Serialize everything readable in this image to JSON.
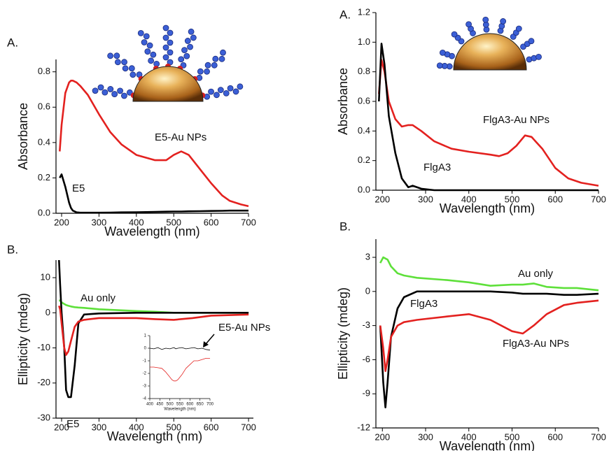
{
  "chart_data": [
    {
      "type": "line",
      "panel": "A.",
      "ylabel": "Absorbance",
      "xlabel": "Wavelength (nm)",
      "xlim": [
        185,
        700
      ],
      "ylim": [
        0,
        0.87
      ],
      "xticks": [
        200,
        300,
        400,
        500,
        600,
        700
      ],
      "yticks": [
        {
          "value": 0,
          "label": "0.0"
        },
        0.2,
        0.4,
        0.6,
        0.8
      ],
      "x": [
        195,
        200,
        210,
        220,
        225,
        230,
        240,
        250,
        270,
        300,
        330,
        360,
        400,
        450,
        480,
        500,
        520,
        540,
        570,
        600,
        630,
        650,
        680,
        700
      ],
      "series": [
        {
          "name": "E5-Au NPs",
          "color": "#e3211f",
          "values": [
            0.35,
            0.5,
            0.68,
            0.74,
            0.75,
            0.75,
            0.74,
            0.72,
            0.67,
            0.56,
            0.46,
            0.39,
            0.33,
            0.3,
            0.3,
            0.33,
            0.35,
            0.33,
            0.25,
            0.17,
            0.1,
            0.07,
            0.05,
            0.04
          ]
        },
        {
          "name": "E5",
          "color": "#000000",
          "values": [
            0.2,
            0.22,
            0.15,
            0.06,
            0.03,
            0.015,
            0.005,
            0.003,
            0.003,
            0.003,
            0.004,
            0.005,
            0.006,
            0.008,
            0.009,
            0.01,
            0.01,
            0.011,
            0.012,
            0.013,
            0.014,
            0.015,
            0.015,
            0.015
          ]
        }
      ]
    },
    {
      "type": "line",
      "panel": "A.",
      "ylabel": "Absorbance",
      "xlabel": "Wavelength (nm)",
      "xlim": [
        185,
        700
      ],
      "ylim": [
        0,
        1.2
      ],
      "xticks": [
        200,
        300,
        400,
        500,
        600,
        700
      ],
      "yticks": [
        {
          "value": 0,
          "label": "0.0"
        },
        0.2,
        0.4,
        0.6,
        0.8,
        {
          "value": 1,
          "label": "1.0"
        },
        1.2
      ],
      "x": [
        192,
        198,
        205,
        215,
        230,
        245,
        260,
        270,
        290,
        320,
        360,
        400,
        450,
        470,
        490,
        510,
        530,
        545,
        570,
        600,
        630,
        660,
        700
      ],
      "series": [
        {
          "name": "FlgA3-Au NPs",
          "color": "#e3211f",
          "values": [
            0.65,
            0.88,
            0.8,
            0.6,
            0.48,
            0.43,
            0.44,
            0.44,
            0.4,
            0.33,
            0.28,
            0.26,
            0.24,
            0.23,
            0.25,
            0.3,
            0.37,
            0.36,
            0.28,
            0.15,
            0.08,
            0.05,
            0.03
          ]
        },
        {
          "name": "FlgA3",
          "color": "#000000",
          "values": [
            0.6,
            0.99,
            0.85,
            0.5,
            0.25,
            0.08,
            0.02,
            0.03,
            0.01,
            0,
            0,
            0,
            0,
            0,
            0,
            0,
            0,
            0,
            0,
            0,
            0,
            0,
            0
          ]
        }
      ]
    },
    {
      "type": "line",
      "panel": "B.",
      "ylabel": "Ellipticity (mdeg)",
      "xlabel": "Wavelength (nm)",
      "xlim": [
        185,
        713
      ],
      "ylim": [
        -30,
        15
      ],
      "xticks": [
        200,
        300,
        400,
        500,
        600,
        700
      ],
      "yticks": [
        -30,
        -20,
        -10,
        0,
        10
      ],
      "x": [
        193,
        196,
        200,
        207,
        212,
        218,
        225,
        235,
        245,
        260,
        300,
        400,
        450,
        500,
        550,
        600,
        700
      ],
      "series": [
        {
          "name": "Au only",
          "color": "#5ee03a",
          "values": [
            3.5,
            3.5,
            3,
            2.5,
            2.2,
            2,
            1.8,
            1.6,
            1.5,
            1.4,
            1,
            0.5,
            0.3,
            0,
            0,
            0,
            0
          ]
        },
        {
          "name": "E5",
          "color": "#000000",
          "values": [
            15,
            8,
            0,
            -10,
            -22,
            -24,
            -24,
            -15,
            -3,
            -0.5,
            -0.2,
            0,
            0,
            0,
            0,
            0,
            0
          ]
        },
        {
          "name": "E5-Au NPs",
          "color": "#e3211f",
          "values": [
            2,
            1,
            -3,
            -10,
            -12,
            -11,
            -8,
            -4,
            -2.5,
            -2,
            -1.5,
            -1.5,
            -1.8,
            -2,
            -1.5,
            -0.8,
            -0.5
          ]
        }
      ]
    },
    {
      "type": "line",
      "panel": "B.",
      "ylabel": "Ellipticity (mdeg)",
      "xlabel": "Wavelength (nm)",
      "xlim": [
        185,
        700
      ],
      "ylim": [
        -12,
        4.6
      ],
      "xticks": [
        200,
        300,
        400,
        500,
        600,
        700
      ],
      "yticks": [
        -12,
        -9,
        -6,
        -3,
        0,
        3
      ],
      "x": [
        195,
        202,
        207,
        212,
        220,
        235,
        250,
        280,
        350,
        400,
        450,
        500,
        525,
        550,
        580,
        620,
        650,
        700
      ],
      "series": [
        {
          "name": "Au only",
          "color": "#5ee03a",
          "values": [
            2.5,
            3,
            2.9,
            2.8,
            2.2,
            1.6,
            1.4,
            1.2,
            1,
            0.8,
            0.5,
            0.6,
            0.6,
            0.7,
            0.4,
            0.3,
            0.3,
            0.1
          ]
        },
        {
          "name": "FlgA3",
          "color": "#000000",
          "values": [
            -3,
            -8,
            -10.2,
            -8,
            -4,
            -1.5,
            -0.5,
            0,
            0,
            0,
            0,
            -0.1,
            -0.2,
            -0.2,
            -0.2,
            -0.3,
            -0.3,
            -0.2
          ]
        },
        {
          "name": "FlgA3-Au NPs",
          "color": "#e3211f",
          "values": [
            -3,
            -5,
            -7,
            -6,
            -4,
            -3,
            -2.7,
            -2.5,
            -2.2,
            -2,
            -2.5,
            -3.5,
            -3.7,
            -3,
            -2,
            -1.2,
            -1,
            -0.8
          ]
        }
      ]
    },
    {
      "type": "line",
      "xlabel": "Wavelength (nm)",
      "xlim": [
        400,
        700
      ],
      "ylim": [
        -4,
        1
      ],
      "xticks": [
        400,
        450,
        500,
        550,
        600,
        650,
        700
      ],
      "yticks": [
        -4,
        -3,
        -2,
        -1,
        0,
        1
      ],
      "x": [
        400,
        420,
        440,
        460,
        480,
        500,
        510,
        520,
        530,
        540,
        560,
        580,
        600,
        620,
        640,
        660,
        680,
        700
      ],
      "series": [
        {
          "color": "#000000",
          "values": [
            0,
            -0.05,
            0.05,
            -0.1,
            0,
            -0.05,
            0,
            0.05,
            -0.05,
            0,
            0.05,
            -0.05,
            0,
            0.05,
            -0.05,
            0,
            -0.1,
            -0.15
          ]
        },
        {
          "color": "#e3211f",
          "values": [
            -1.5,
            -1.5,
            -1.55,
            -1.6,
            -1.9,
            -2.3,
            -2.5,
            -2.6,
            -2.6,
            -2.5,
            -2.1,
            -1.6,
            -1.3,
            -1.0,
            -1.0,
            -0.9,
            -0.8,
            -0.8
          ]
        }
      ]
    }
  ]
}
